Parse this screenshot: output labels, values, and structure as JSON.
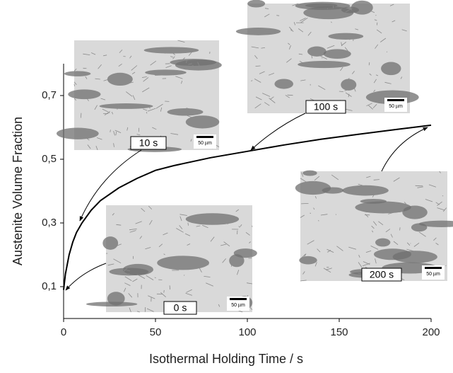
{
  "chart_data": {
    "type": "line",
    "x_label": "Isothermal Holding Time / s",
    "y_label": "Austenite Volume Fraction",
    "x": [
      0,
      1,
      2,
      3,
      5,
      7,
      10,
      15,
      20,
      30,
      40,
      50,
      60,
      80,
      100,
      120,
      140,
      160,
      180,
      200
    ],
    "series": [
      {
        "color": "#000000",
        "values": [
          0.09,
          0.14,
          0.17,
          0.2,
          0.24,
          0.27,
          0.3,
          0.34,
          0.37,
          0.41,
          0.44,
          0.465,
          0.48,
          0.505,
          0.525,
          0.545,
          0.563,
          0.578,
          0.593,
          0.607
        ]
      }
    ],
    "xlim": [
      0,
      200
    ],
    "xticks": [
      0,
      50,
      100,
      150,
      200
    ],
    "ylim": [
      0,
      0.8
    ],
    "yticks": [
      {
        "value": 0.1,
        "label": "0,1"
      },
      {
        "value": 0.3,
        "label": "0,3"
      },
      {
        "value": 0.5,
        "label": "0,5"
      },
      {
        "value": 0.7,
        "label": "0,7"
      }
    ],
    "annotations": [
      {
        "label": "10 s",
        "scale": "50 µm"
      },
      {
        "label": "100 s",
        "scale": "50 µm"
      },
      {
        "label": "200 s",
        "scale": "50 µm"
      },
      {
        "label": "0 s",
        "scale": "50 µm"
      }
    ]
  }
}
